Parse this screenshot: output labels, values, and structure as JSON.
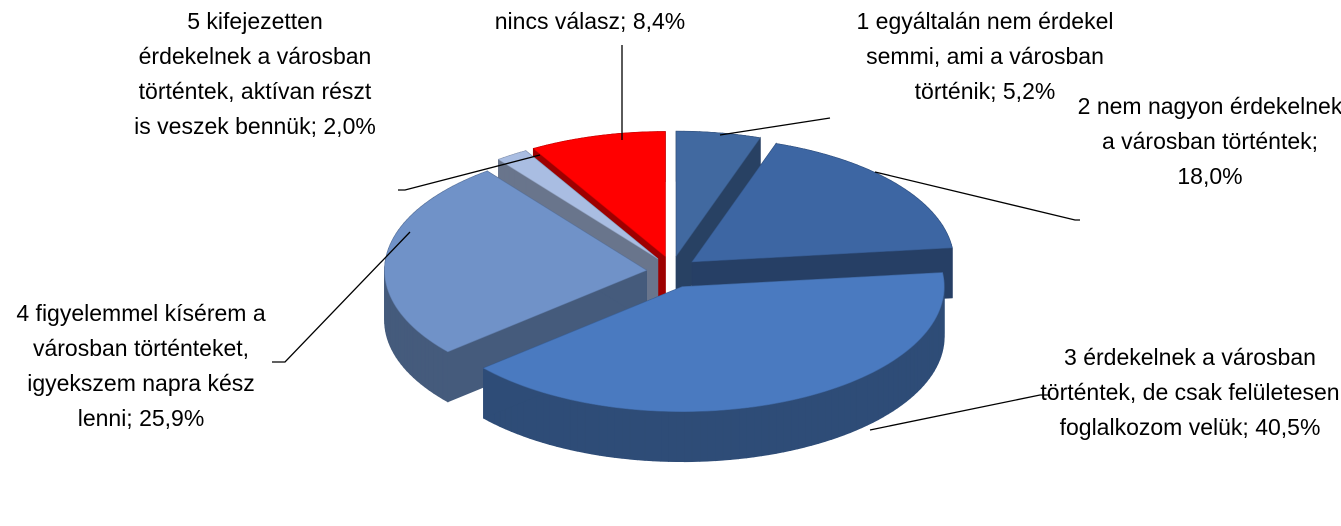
{
  "chart_data": {
    "type": "pie3d",
    "categories": [
      "1 egyáltalán nem érdekel semmi, ami a városban történik;",
      "2 nem nagyon érdekelnek a városban történtek;",
      "3 érdekelnek a városban történtek, de csak felületesen foglalkozom velük;",
      "4 figyelemmel kísérem a városban történteket, igyekszem napra kész lenni;",
      "5 kifejezetten érdekelnek a városban történtek, aktívan részt is veszek bennük;",
      "nincs válasz;"
    ],
    "values": [
      5.2,
      18.0,
      40.5,
      25.9,
      2.0,
      8.4
    ],
    "value_labels": [
      "5,2%",
      "18,0%",
      "40,5%",
      "25,9%",
      "2,0%",
      "8,4%"
    ],
    "colors": [
      "#4169a0",
      "#3d66a3",
      "#4a7ac0",
      "#7092c8",
      "#a9bde2",
      "#ff0000"
    ]
  }
}
